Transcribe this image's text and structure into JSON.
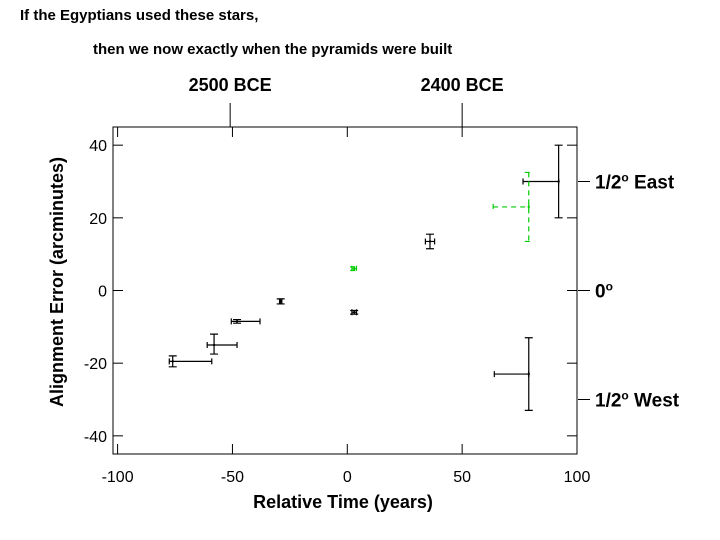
{
  "chart_data": {
    "type": "errorbar",
    "title": "If the Egyptians used these stars,",
    "subtitle": "then we now exactly when the pyramids were built",
    "x_label": "Relative Time (years)",
    "y_label": "Alignment Error (arcminutes)",
    "xlim": [
      -102,
      100
    ],
    "ylim": [
      -45,
      45
    ],
    "xticks": [
      -100,
      -50,
      0,
      50,
      100
    ],
    "yticks": [
      -40,
      -20,
      0,
      20,
      40
    ],
    "x2ticks": [
      {
        "value": -51,
        "label": "2500 BCE"
      },
      {
        "value": 50,
        "label": "2400 BCE"
      }
    ],
    "y2lim": [
      -45,
      45
    ],
    "y2ticks": [
      {
        "value": 30,
        "label": "1/2",
        "superscript": "o",
        "label_end": " East"
      },
      {
        "value": 0,
        "label": "0",
        "superscript": "o"
      },
      {
        "value": -30,
        "label": "1/2",
        "superscript": "o",
        "label_end": " West"
      }
    ],
    "series": [
      {
        "color": "#000000",
        "dashed": false,
        "x": [
          -76,
          -58,
          -48,
          -29,
          3,
          36,
          92,
          79
        ],
        "y": [
          -19.5,
          -15,
          -8.5,
          -3,
          -6,
          13.5,
          30,
          -23
        ],
        "xerr": [
          [
            1.5,
            17
          ],
          [
            3,
            10
          ],
          [
            2.5,
            10
          ],
          [
            0.5,
            0.5
          ],
          [
            1,
            1
          ],
          [
            2,
            2
          ],
          [
            15.5,
            0
          ],
          [
            15,
            0
          ]
        ],
        "yerr": [
          [
            1.5,
            1.5
          ],
          [
            2.5,
            3
          ],
          [
            0.5,
            0.5
          ],
          [
            0.7,
            0.7
          ],
          [
            0.5,
            0.5
          ],
          [
            2,
            2
          ],
          [
            10,
            10
          ],
          [
            10,
            10
          ]
        ]
      },
      {
        "color": "#00cc00",
        "dashed": true,
        "x": [
          3,
          79
        ],
        "y": [
          6,
          23
        ],
        "xerr": [
          [
            1,
            1
          ],
          [
            15.5,
            0
          ]
        ],
        "yerr": [
          [
            0.5,
            0.5
          ],
          [
            9.5,
            9.5
          ]
        ]
      }
    ]
  }
}
